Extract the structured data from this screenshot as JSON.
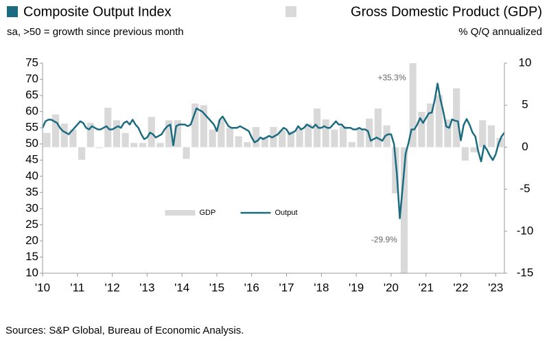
{
  "chart_data": {
    "type": "combo",
    "title": "Composite Output Index",
    "subtitle": "sa, >50 = growth since previous month",
    "title2": "Gross Domestic Product (GDP)",
    "subtitle2": "% Q/Q annualized",
    "source": "Sources: S&P Global, Bureau of Economic Analysis.",
    "legend": "center",
    "xlim": [
      2010,
      2023.25
    ],
    "xticks": [
      {
        "value": 2010,
        "label": "'10"
      },
      {
        "value": 2011,
        "label": "'11"
      },
      {
        "value": 2012,
        "label": "'12"
      },
      {
        "value": 2013,
        "label": "'13"
      },
      {
        "value": 2014,
        "label": "'14"
      },
      {
        "value": 2015,
        "label": "'15"
      },
      {
        "value": 2016,
        "label": "'16"
      },
      {
        "value": 2017,
        "label": "'17"
      },
      {
        "value": 2018,
        "label": "'18"
      },
      {
        "value": 2019,
        "label": "'19"
      },
      {
        "value": 2020,
        "label": "'20"
      },
      {
        "value": 2021,
        "label": "'21"
      },
      {
        "value": 2022,
        "label": "'22"
      },
      {
        "value": 2023,
        "label": "'23"
      }
    ],
    "ylim": [
      10,
      75
    ],
    "yticks": [
      10,
      15,
      20,
      25,
      30,
      35,
      40,
      45,
      50,
      55,
      60,
      65,
      70,
      75
    ],
    "y2lim": [
      -15,
      10
    ],
    "y2ticks": [
      -15,
      -10,
      -5,
      0,
      5,
      10
    ],
    "series": [
      {
        "name": "GDP",
        "type": "bar",
        "axis": "y2",
        "color": "#d9d9d9",
        "x": [
          2010.125,
          2010.375,
          2010.625,
          2010.875,
          2011.125,
          2011.375,
          2011.625,
          2011.875,
          2012.125,
          2012.375,
          2012.625,
          2012.875,
          2013.125,
          2013.375,
          2013.625,
          2013.875,
          2014.125,
          2014.375,
          2014.625,
          2014.875,
          2015.125,
          2015.375,
          2015.625,
          2015.875,
          2016.125,
          2016.375,
          2016.625,
          2016.875,
          2017.125,
          2017.375,
          2017.625,
          2017.875,
          2018.125,
          2018.375,
          2018.625,
          2018.875,
          2019.125,
          2019.375,
          2019.625,
          2019.875,
          2020.125,
          2020.375,
          2020.625,
          2020.875,
          2021.125,
          2021.375,
          2021.625,
          2021.875,
          2022.125,
          2022.375,
          2022.625,
          2022.875,
          2023.125
        ],
        "values": [
          1.7,
          3.9,
          2.8,
          2.1,
          -1.5,
          2.9,
          -0.1,
          4.7,
          3.2,
          1.7,
          0.5,
          0.5,
          3.6,
          0.5,
          3.2,
          3.2,
          -1.4,
          5.2,
          5.0,
          2.1,
          3.3,
          2.3,
          1.3,
          0.6,
          2.4,
          1.2,
          2.4,
          2.0,
          1.9,
          2.2,
          2.8,
          4.6,
          3.3,
          2.1,
          2.5,
          0.6,
          2.2,
          3.4,
          4.6,
          2.6,
          -5.5,
          -29.9,
          35.3,
          4.2,
          5.2,
          6.2,
          3.3,
          7.0,
          -1.6,
          -0.6,
          3.2,
          2.6,
          1.1
        ],
        "value_labels": [
          null,
          null,
          null,
          null,
          null,
          null,
          null,
          null,
          null,
          null,
          null,
          null,
          null,
          null,
          null,
          null,
          null,
          null,
          null,
          null,
          null,
          null,
          null,
          null,
          null,
          null,
          null,
          null,
          null,
          null,
          null,
          null,
          null,
          null,
          null,
          null,
          null,
          null,
          null,
          null,
          null,
          "-29.9%",
          "+35.3%",
          null,
          null,
          null,
          null,
          null,
          null,
          null,
          null,
          null,
          null
        ]
      },
      {
        "name": "Output",
        "type": "line",
        "axis": "y",
        "color": "#1b6b80",
        "x": [
          2010,
          2010.0833,
          2010.1667,
          2010.25,
          2010.3333,
          2010.4167,
          2010.5,
          2010.5833,
          2010.6667,
          2010.75,
          2010.8333,
          2010.9167,
          2011,
          2011.0833,
          2011.1667,
          2011.25,
          2011.3333,
          2011.4167,
          2011.5,
          2011.5833,
          2011.6667,
          2011.75,
          2011.8333,
          2011.9167,
          2012,
          2012.0833,
          2012.1667,
          2012.25,
          2012.3333,
          2012.4167,
          2012.5,
          2012.5833,
          2012.6667,
          2012.75,
          2012.8333,
          2012.9167,
          2013,
          2013.0833,
          2013.1667,
          2013.25,
          2013.3333,
          2013.4167,
          2013.5,
          2013.5833,
          2013.6667,
          2013.75,
          2013.8333,
          2013.9167,
          2014,
          2014.0833,
          2014.1667,
          2014.25,
          2014.3333,
          2014.4167,
          2014.5,
          2014.5833,
          2014.6667,
          2014.75,
          2014.8333,
          2014.9167,
          2015,
          2015.0833,
          2015.1667,
          2015.25,
          2015.3333,
          2015.4167,
          2015.5,
          2015.5833,
          2015.6667,
          2015.75,
          2015.8333,
          2015.9167,
          2016,
          2016.0833,
          2016.1667,
          2016.25,
          2016.3333,
          2016.4167,
          2016.5,
          2016.5833,
          2016.6667,
          2016.75,
          2016.8333,
          2016.9167,
          2017,
          2017.0833,
          2017.1667,
          2017.25,
          2017.3333,
          2017.4167,
          2017.5,
          2017.5833,
          2017.6667,
          2017.75,
          2017.8333,
          2017.9167,
          2018,
          2018.0833,
          2018.1667,
          2018.25,
          2018.3333,
          2018.4167,
          2018.5,
          2018.5833,
          2018.6667,
          2018.75,
          2018.8333,
          2018.9167,
          2019,
          2019.0833,
          2019.1667,
          2019.25,
          2019.3333,
          2019.4167,
          2019.5,
          2019.5833,
          2019.6667,
          2019.75,
          2019.8333,
          2019.9167,
          2020,
          2020.0833,
          2020.1667,
          2020.25,
          2020.3333,
          2020.4167,
          2020.5,
          2020.5833,
          2020.6667,
          2020.75,
          2020.8333,
          2020.9167,
          2021,
          2021.0833,
          2021.1667,
          2021.25,
          2021.3333,
          2021.4167,
          2021.5,
          2021.5833,
          2021.6667,
          2021.75,
          2021.8333,
          2021.9167,
          2022,
          2022.0833,
          2022.1667,
          2022.25,
          2022.3333,
          2022.4167,
          2022.5,
          2022.5833,
          2022.6667,
          2022.75,
          2022.8333,
          2022.9167,
          2023,
          2023.0833,
          2023.1667,
          2023.25
        ],
        "values": [
          55,
          57,
          57.5,
          57.5,
          57,
          56.5,
          55,
          54,
          53.5,
          53,
          54,
          55,
          56,
          57,
          56.5,
          55,
          54.5,
          55.5,
          55,
          54.5,
          54.5,
          55,
          55.5,
          54.5,
          54.5,
          55,
          55.5,
          55,
          56.5,
          57,
          56,
          57.5,
          56,
          55,
          53,
          51.5,
          52,
          53.5,
          53,
          52,
          52.5,
          53,
          54.5,
          55.5,
          56,
          49.5,
          55.5,
          56,
          56,
          56,
          55.5,
          56,
          58.5,
          61,
          60.5,
          60,
          59,
          58,
          57,
          56,
          54,
          57.5,
          58.5,
          57,
          55.5,
          55,
          55,
          55,
          55.5,
          55,
          54.5,
          54,
          52,
          50.5,
          51,
          52,
          51.5,
          52,
          52.5,
          52,
          52.5,
          53,
          54,
          55,
          54.5,
          53,
          53.5,
          54,
          55.5,
          54.5,
          55,
          56,
          55.5,
          55,
          56,
          55,
          55,
          55.5,
          55,
          55,
          56,
          57,
          56,
          56,
          55,
          55,
          55,
          54.5,
          54.5,
          55,
          54.5,
          54.5,
          54,
          51,
          51.5,
          52,
          51.5,
          51,
          52.5,
          53,
          53,
          50,
          40.5,
          27,
          37,
          47,
          50.3,
          54.5,
          54.5,
          56,
          58,
          56.5,
          58,
          59.5,
          59.7,
          63.5,
          68.7,
          63.7,
          59.9,
          55.4,
          55,
          57.6,
          57.2,
          57,
          51.1,
          55.9,
          57.7,
          56,
          53.6,
          52.3,
          47.7,
          44.6,
          49.5,
          48.2,
          46.4,
          45,
          46.8,
          50.1,
          52.3,
          53.5
        ]
      }
    ]
  }
}
